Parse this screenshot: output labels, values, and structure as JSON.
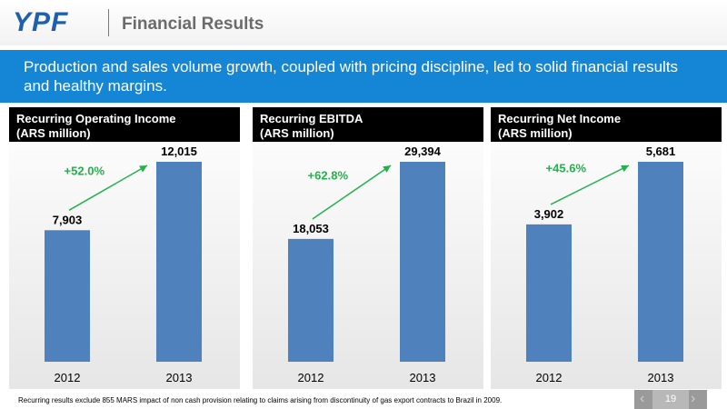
{
  "header": {
    "logo": "YPF",
    "title": "Financial Results"
  },
  "banner": {
    "text": "Production and sales volume growth, coupled with pricing discipline, led to solid financial results and healthy margins."
  },
  "chart_data": [
    {
      "type": "bar",
      "header_line1": "Recurring Operating Income",
      "header_line2": "(ARS million)",
      "categories": [
        "2012",
        "2013"
      ],
      "values": [
        7903,
        12015
      ],
      "value_labels": [
        "7,903",
        "12,015"
      ],
      "growth_label": "+52.0%",
      "color": "#4f81bd",
      "arrow_color": "#22b14c"
    },
    {
      "type": "bar",
      "header_line1": "Recurring EBITDA",
      "header_line2": "(ARS million)",
      "categories": [
        "2012",
        "2013"
      ],
      "values": [
        18053,
        29394
      ],
      "value_labels": [
        "18,053",
        "29,394"
      ],
      "growth_label": "+62.8%",
      "color": "#4f81bd",
      "arrow_color": "#22b14c"
    },
    {
      "type": "bar",
      "header_line1": "Recurring Net Income",
      "header_line2": "(ARS million)",
      "categories": [
        "2012",
        "2013"
      ],
      "values": [
        3902,
        5681
      ],
      "value_labels": [
        "3,902",
        "5,681"
      ],
      "growth_label": "+45.6%",
      "color": "#4f81bd",
      "arrow_color": "#22b14c"
    }
  ],
  "footer": {
    "note": "Recurring results exclude 855 MARS impact of non cash provision relating to claims arising from  discontinuity of gas export contracts to Brazil in 2009.",
    "page_number": "19",
    "prev_symbol": "‹",
    "next_symbol": "›"
  }
}
